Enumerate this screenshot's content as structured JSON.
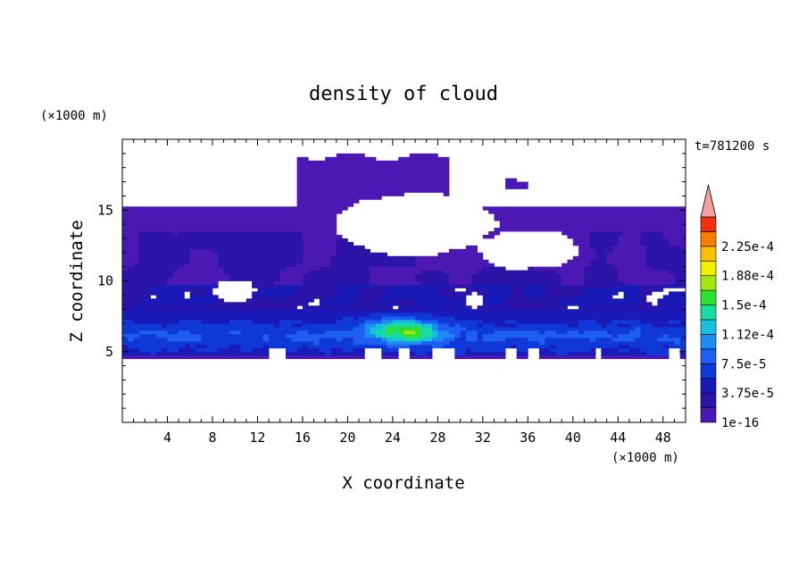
{
  "chart_data": {
    "type": "heatmap",
    "title": "density of cloud",
    "xlabel": "X coordinate",
    "ylabel": "Z coordinate",
    "x_unit": "(×1000 m)",
    "y_unit": "(×1000 m)",
    "time_label": "t=781200 s",
    "xlim": [
      0,
      50
    ],
    "ylim": [
      0,
      20
    ],
    "xticks": [
      4,
      8,
      12,
      16,
      20,
      24,
      28,
      32,
      36,
      40,
      44,
      48
    ],
    "yticks": [
      5,
      10,
      15
    ],
    "colorbar": {
      "labels": [
        "1e-16",
        "3.75e-5",
        "7.5e-5",
        "1.12e-4",
        "1.5e-4",
        "1.88e-4",
        "2.25e-4"
      ],
      "levels": [
        1e-16,
        1.875e-05,
        3.75e-05,
        5.625e-05,
        7.5e-05,
        9.375e-05,
        0.0001125,
        0.00013125,
        0.00015,
        0.00016875,
        0.0001875,
        0.00020625,
        0.000225,
        0.00024375
      ],
      "colors": [
        "#4b18b4",
        "#2c14a8",
        "#1a1ab8",
        "#1038d8",
        "#1e5ef0",
        "#1e8cf0",
        "#18c0e0",
        "#18dca0",
        "#30e030",
        "#a0e810",
        "#f0f000",
        "#f8c000",
        "#f88000",
        "#f03010",
        "#f4a0a0"
      ],
      "extend": "max"
    },
    "field": {
      "note_units": "x in ×1000 m, z in ×1000 m, value = cloud density level index",
      "background_band": {
        "z_min": 4.5,
        "z_max": 15.3,
        "x_min": 0,
        "x_max": 50
      },
      "upper_patches": [
        {
          "x0": 15.5,
          "x1": 29,
          "z0": 15.3,
          "z1": 18.8
        },
        {
          "x0": 34,
          "x1": 36,
          "z0": 16.4,
          "z1": 17.2
        }
      ],
      "clear_regions": [
        {
          "cx": 26,
          "cz": 14,
          "rx": 7,
          "rz": 2.2
        },
        {
          "cx": 36,
          "cz": 12.2,
          "rx": 4.5,
          "rz": 1.4
        },
        {
          "cx": 10,
          "cz": 9.3,
          "rx": 1.8,
          "rz": 0.8
        }
      ],
      "lower_layer": {
        "z_min": 4.8,
        "z_max": 8.3,
        "peak_x": 25,
        "peak_z": 6.5,
        "peak_level": 7
      }
    }
  }
}
